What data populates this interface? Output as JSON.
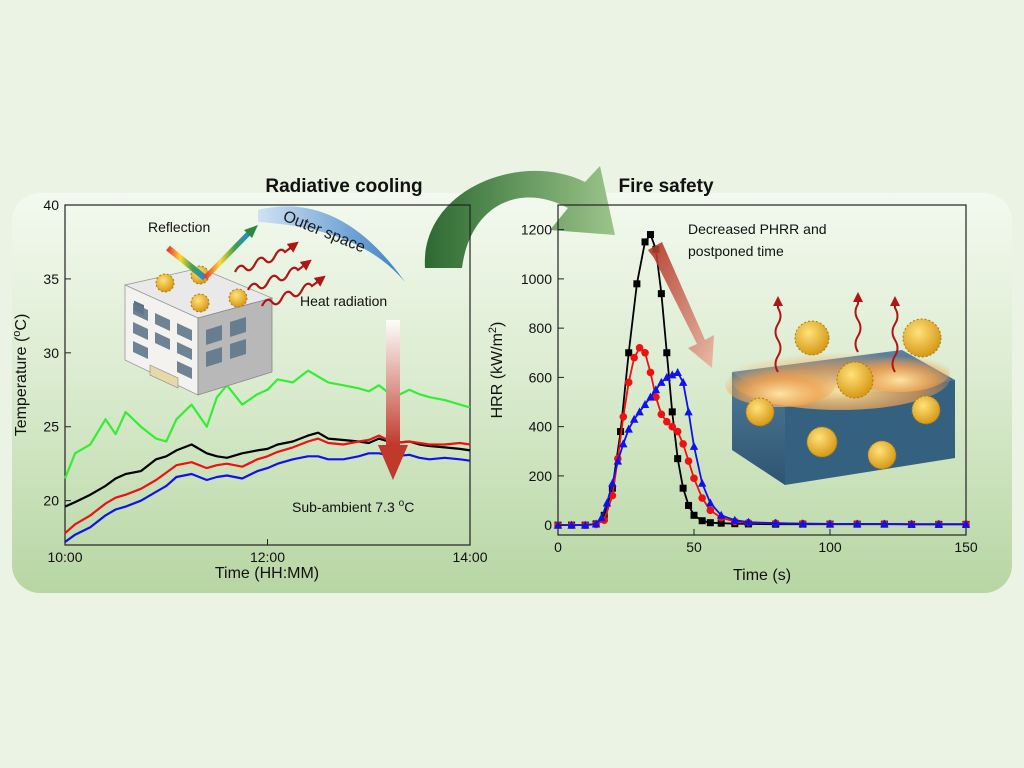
{
  "colors": {
    "page_bg": "#eaf3e4",
    "panel_top": "#f2f8ee",
    "panel_bottom": "#b9d7a6",
    "black_series": "#000000",
    "red_series": "#ee1111",
    "blue_series": "#1111ee",
    "green_series": "#33ee33",
    "arrow_green": "#2f6b34",
    "heat_arrow": "#aa1111"
  },
  "headings": {
    "left": "Radiative cooling",
    "right": "Fire safety"
  },
  "labels": {
    "reflection": "Reflection",
    "outer_space": "Outer space",
    "heat_radiation": "Heat radiation",
    "sub_ambient": "Sub-ambient 7.3 ",
    "sub_ambient_sup": "o",
    "sub_ambient_unit": "C",
    "decreased_line1": "Decreased PHRR and",
    "decreased_line2": "postponed time"
  },
  "icons": {
    "building": "building-icon",
    "reflection": "reflection-rays-icon",
    "heat_waves": "heat-wave-arrow-icon",
    "cooling_arrow": "cooling-down-arrow-icon",
    "flame_block": "flame-composite-icon",
    "nanoparticle": "nanoparticle-icon",
    "transition_arrow": "curved-arrow-icon"
  },
  "chart_data": [
    {
      "type": "line",
      "title": "Radiative cooling",
      "xlabel": "Time (HH:MM)",
      "ylabel_main": "Temperature (",
      "ylabel_sup": "o",
      "ylabel_end": "C)",
      "x_unit": "hours",
      "xlim": [
        10,
        14
      ],
      "ylim": [
        17,
        40
      ],
      "xticks": [
        10,
        12,
        14
      ],
      "xtick_labels": [
        "10:00",
        "12:00",
        "14:00"
      ],
      "yticks": [
        20,
        25,
        30,
        35,
        40
      ],
      "ytick_labels": [
        "20",
        "25",
        "30",
        "35",
        "40"
      ],
      "series": [
        {
          "name": "green",
          "color": "#33ee33",
          "x": [
            10.0,
            10.1,
            10.25,
            10.4,
            10.5,
            10.6,
            10.75,
            10.9,
            11.0,
            11.1,
            11.25,
            11.4,
            11.5,
            11.6,
            11.75,
            11.9,
            12.0,
            12.1,
            12.25,
            12.4,
            12.5,
            12.6,
            12.75,
            12.9,
            13.0,
            13.1,
            13.25,
            13.4,
            13.5,
            13.6,
            13.75,
            13.9,
            14.0
          ],
          "y": [
            21.5,
            23.2,
            23.8,
            25.5,
            24.5,
            26.0,
            25.0,
            24.2,
            24.0,
            25.5,
            26.5,
            25.0,
            27.0,
            27.8,
            26.5,
            27.2,
            27.5,
            28.2,
            28.0,
            28.8,
            28.4,
            28.0,
            27.8,
            27.6,
            27.4,
            27.8,
            27.0,
            27.5,
            27.2,
            27.0,
            26.8,
            26.5,
            26.3
          ]
        },
        {
          "name": "black",
          "color": "#000000",
          "x": [
            10.0,
            10.1,
            10.25,
            10.4,
            10.5,
            10.6,
            10.75,
            10.9,
            11.0,
            11.1,
            11.25,
            11.4,
            11.5,
            11.6,
            11.75,
            11.9,
            12.0,
            12.1,
            12.25,
            12.4,
            12.5,
            12.6,
            12.75,
            12.9,
            13.0,
            13.1,
            13.25,
            13.4,
            13.5,
            13.6,
            13.75,
            13.9,
            14.0
          ],
          "y": [
            19.6,
            19.9,
            20.4,
            21.0,
            21.5,
            21.8,
            22.0,
            22.8,
            23.0,
            23.4,
            23.8,
            23.2,
            23.0,
            22.9,
            23.2,
            23.4,
            23.5,
            23.8,
            24.0,
            24.4,
            24.6,
            24.2,
            24.1,
            24.0,
            23.9,
            24.2,
            23.9,
            24.0,
            23.8,
            23.7,
            23.6,
            23.5,
            23.4
          ]
        },
        {
          "name": "red",
          "color": "#ee1111",
          "x": [
            10.0,
            10.1,
            10.25,
            10.4,
            10.5,
            10.6,
            10.75,
            10.9,
            11.0,
            11.1,
            11.25,
            11.4,
            11.5,
            11.6,
            11.75,
            11.9,
            12.0,
            12.1,
            12.25,
            12.4,
            12.5,
            12.6,
            12.75,
            12.9,
            13.0,
            13.1,
            13.25,
            13.4,
            13.5,
            13.6,
            13.75,
            13.9,
            14.0
          ],
          "y": [
            17.8,
            18.4,
            19.0,
            19.8,
            20.2,
            20.4,
            20.8,
            21.4,
            21.9,
            22.4,
            22.6,
            22.2,
            22.4,
            22.5,
            22.3,
            22.8,
            23.0,
            23.3,
            23.6,
            24.0,
            24.2,
            23.9,
            23.8,
            24.0,
            24.1,
            24.4,
            23.9,
            24.0,
            23.9,
            23.8,
            23.8,
            23.9,
            23.8
          ]
        },
        {
          "name": "blue",
          "color": "#1111ee",
          "x": [
            10.0,
            10.1,
            10.25,
            10.4,
            10.5,
            10.6,
            10.75,
            10.9,
            11.0,
            11.1,
            11.25,
            11.4,
            11.5,
            11.6,
            11.75,
            11.9,
            12.0,
            12.1,
            12.25,
            12.4,
            12.5,
            12.6,
            12.75,
            12.9,
            13.0,
            13.1,
            13.25,
            13.4,
            13.5,
            13.6,
            13.75,
            13.9,
            14.0
          ],
          "y": [
            17.2,
            17.7,
            18.2,
            19.0,
            19.4,
            19.6,
            20.0,
            20.6,
            21.0,
            21.6,
            21.8,
            21.4,
            21.6,
            21.7,
            21.5,
            22.0,
            22.2,
            22.5,
            22.8,
            23.0,
            23.0,
            22.8,
            22.8,
            23.0,
            23.2,
            23.2,
            23.0,
            23.1,
            22.9,
            22.8,
            22.9,
            22.8,
            22.7
          ]
        }
      ]
    },
    {
      "type": "line",
      "title": "Fire safety",
      "xlabel": "Time (s)",
      "ylabel_main": "HRR (kW/m",
      "ylabel_sup": "2",
      "ylabel_end": ")",
      "xlim": [
        0,
        150
      ],
      "ylim": [
        -40,
        1300
      ],
      "xticks": [
        0,
        50,
        100,
        150
      ],
      "xtick_labels": [
        "0",
        "50",
        "100",
        "150"
      ],
      "yticks": [
        0,
        200,
        400,
        600,
        800,
        1000,
        1200
      ],
      "ytick_labels": [
        "0",
        "200",
        "400",
        "600",
        "800",
        "1000",
        "1200"
      ],
      "series": [
        {
          "name": "black",
          "color": "#000000",
          "marker": "square",
          "x": [
            0,
            5,
            10,
            14,
            17,
            20,
            23,
            26,
            29,
            32,
            34,
            36,
            38,
            40,
            42,
            44,
            46,
            48,
            50,
            53,
            56,
            60,
            65,
            70,
            80,
            90,
            100,
            110,
            120,
            130,
            140,
            150
          ],
          "y": [
            0,
            0,
            0,
            5,
            40,
            150,
            380,
            700,
            980,
            1150,
            1180,
            1120,
            940,
            700,
            460,
            270,
            150,
            80,
            40,
            18,
            10,
            8,
            6,
            5,
            4,
            4,
            4,
            4,
            4,
            3,
            3,
            3
          ]
        },
        {
          "name": "red",
          "color": "#ee1111",
          "marker": "circle",
          "x": [
            0,
            5,
            10,
            14,
            17,
            20,
            22,
            24,
            26,
            28,
            30,
            32,
            34,
            36,
            38,
            40,
            42,
            44,
            46,
            48,
            50,
            53,
            56,
            60,
            65,
            70,
            80,
            90,
            100,
            110,
            120,
            130,
            140,
            150
          ],
          "y": [
            0,
            0,
            0,
            3,
            20,
            120,
            270,
            440,
            580,
            680,
            720,
            700,
            620,
            520,
            450,
            420,
            400,
            380,
            330,
            260,
            190,
            110,
            60,
            30,
            15,
            10,
            8,
            6,
            5,
            5,
            5,
            4,
            4,
            4
          ]
        },
        {
          "name": "blue",
          "color": "#1111ee",
          "marker": "triangle",
          "x": [
            0,
            5,
            10,
            14,
            16,
            18,
            20,
            22,
            24,
            26,
            28,
            30,
            32,
            34,
            36,
            38,
            40,
            42,
            44,
            46,
            48,
            50,
            53,
            56,
            60,
            65,
            70,
            80,
            90,
            100,
            110,
            120,
            130,
            140,
            150
          ],
          "y": [
            0,
            0,
            0,
            5,
            30,
            90,
            170,
            260,
            330,
            390,
            430,
            460,
            490,
            520,
            550,
            580,
            600,
            610,
            620,
            580,
            460,
            320,
            170,
            90,
            40,
            20,
            12,
            8,
            6,
            5,
            5,
            5,
            4,
            4,
            4
          ]
        }
      ]
    }
  ]
}
